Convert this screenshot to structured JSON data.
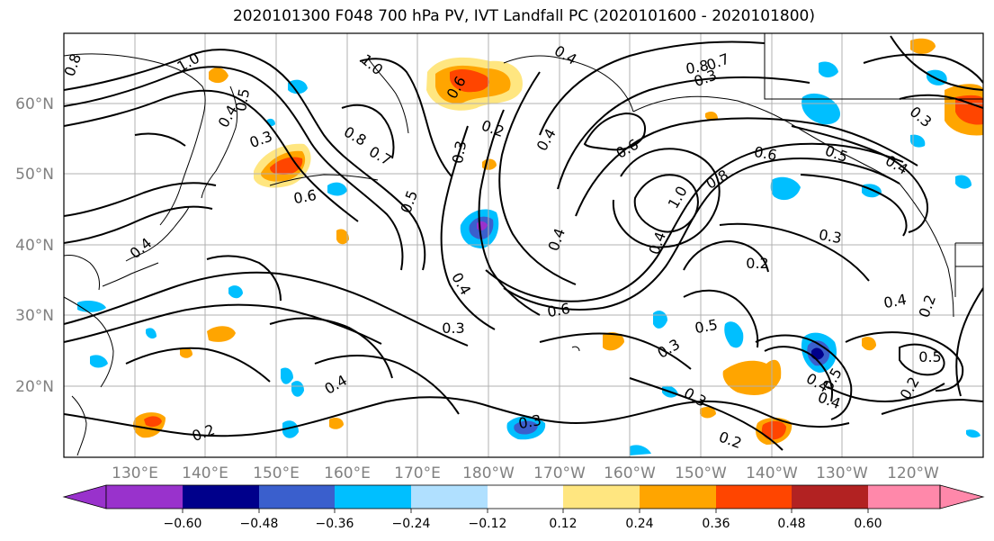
{
  "title": "2020101300 F048 700 hPa PV, IVT Landfall PC (2020101600 - 2020101800)",
  "lat_labels": [
    "60°N",
    "50°N",
    "40°N",
    "30°N",
    "20°N"
  ],
  "lon_labels": [
    "130°E",
    "140°E",
    "150°E",
    "160°E",
    "170°E",
    "180°W",
    "170°W",
    "160°W",
    "150°W",
    "140°W",
    "130°W",
    "120°W"
  ],
  "contour_labels": [
    "0.8",
    "1.0",
    "0.5",
    "0.3",
    "0.4",
    "1.0",
    "0.6",
    "0.2",
    "0.3",
    "0.8",
    "0.7",
    "0.7",
    "0.6",
    "0.8",
    "0.3",
    "0.5",
    "0.4",
    "0.6",
    "0.4",
    "1.0",
    "0.8",
    "0.6",
    "0.5",
    "0.4",
    "0.3",
    "0.2",
    "0.4",
    "0.4",
    "0.3",
    "0.6",
    "0.3",
    "0.5",
    "0.4",
    "0.3",
    "0.4",
    "0.5",
    "0.4",
    "0.2",
    "0.3",
    "0.2",
    "0.3",
    "0.2",
    "0.5",
    "0.4",
    "0.4",
    "0.4",
    "0.2"
  ],
  "colorbar": {
    "ticks": [
      "−0.60",
      "−0.48",
      "−0.36",
      "−0.24",
      "−0.12",
      "0.12",
      "0.24",
      "0.36",
      "0.48",
      "0.60"
    ],
    "colors": [
      "#9932cc",
      "#00008b",
      "#3a5fcd",
      "#00bfff",
      "#b0e0ff",
      "#ffffff",
      "#ffe680",
      "#ffa500",
      "#ff4500",
      "#b22222",
      "#ff88aa"
    ]
  },
  "colors": {
    "ocean": "#ffffff",
    "grid": "#b0b0b0",
    "contour": "#000000",
    "coastline": "#000000"
  }
}
